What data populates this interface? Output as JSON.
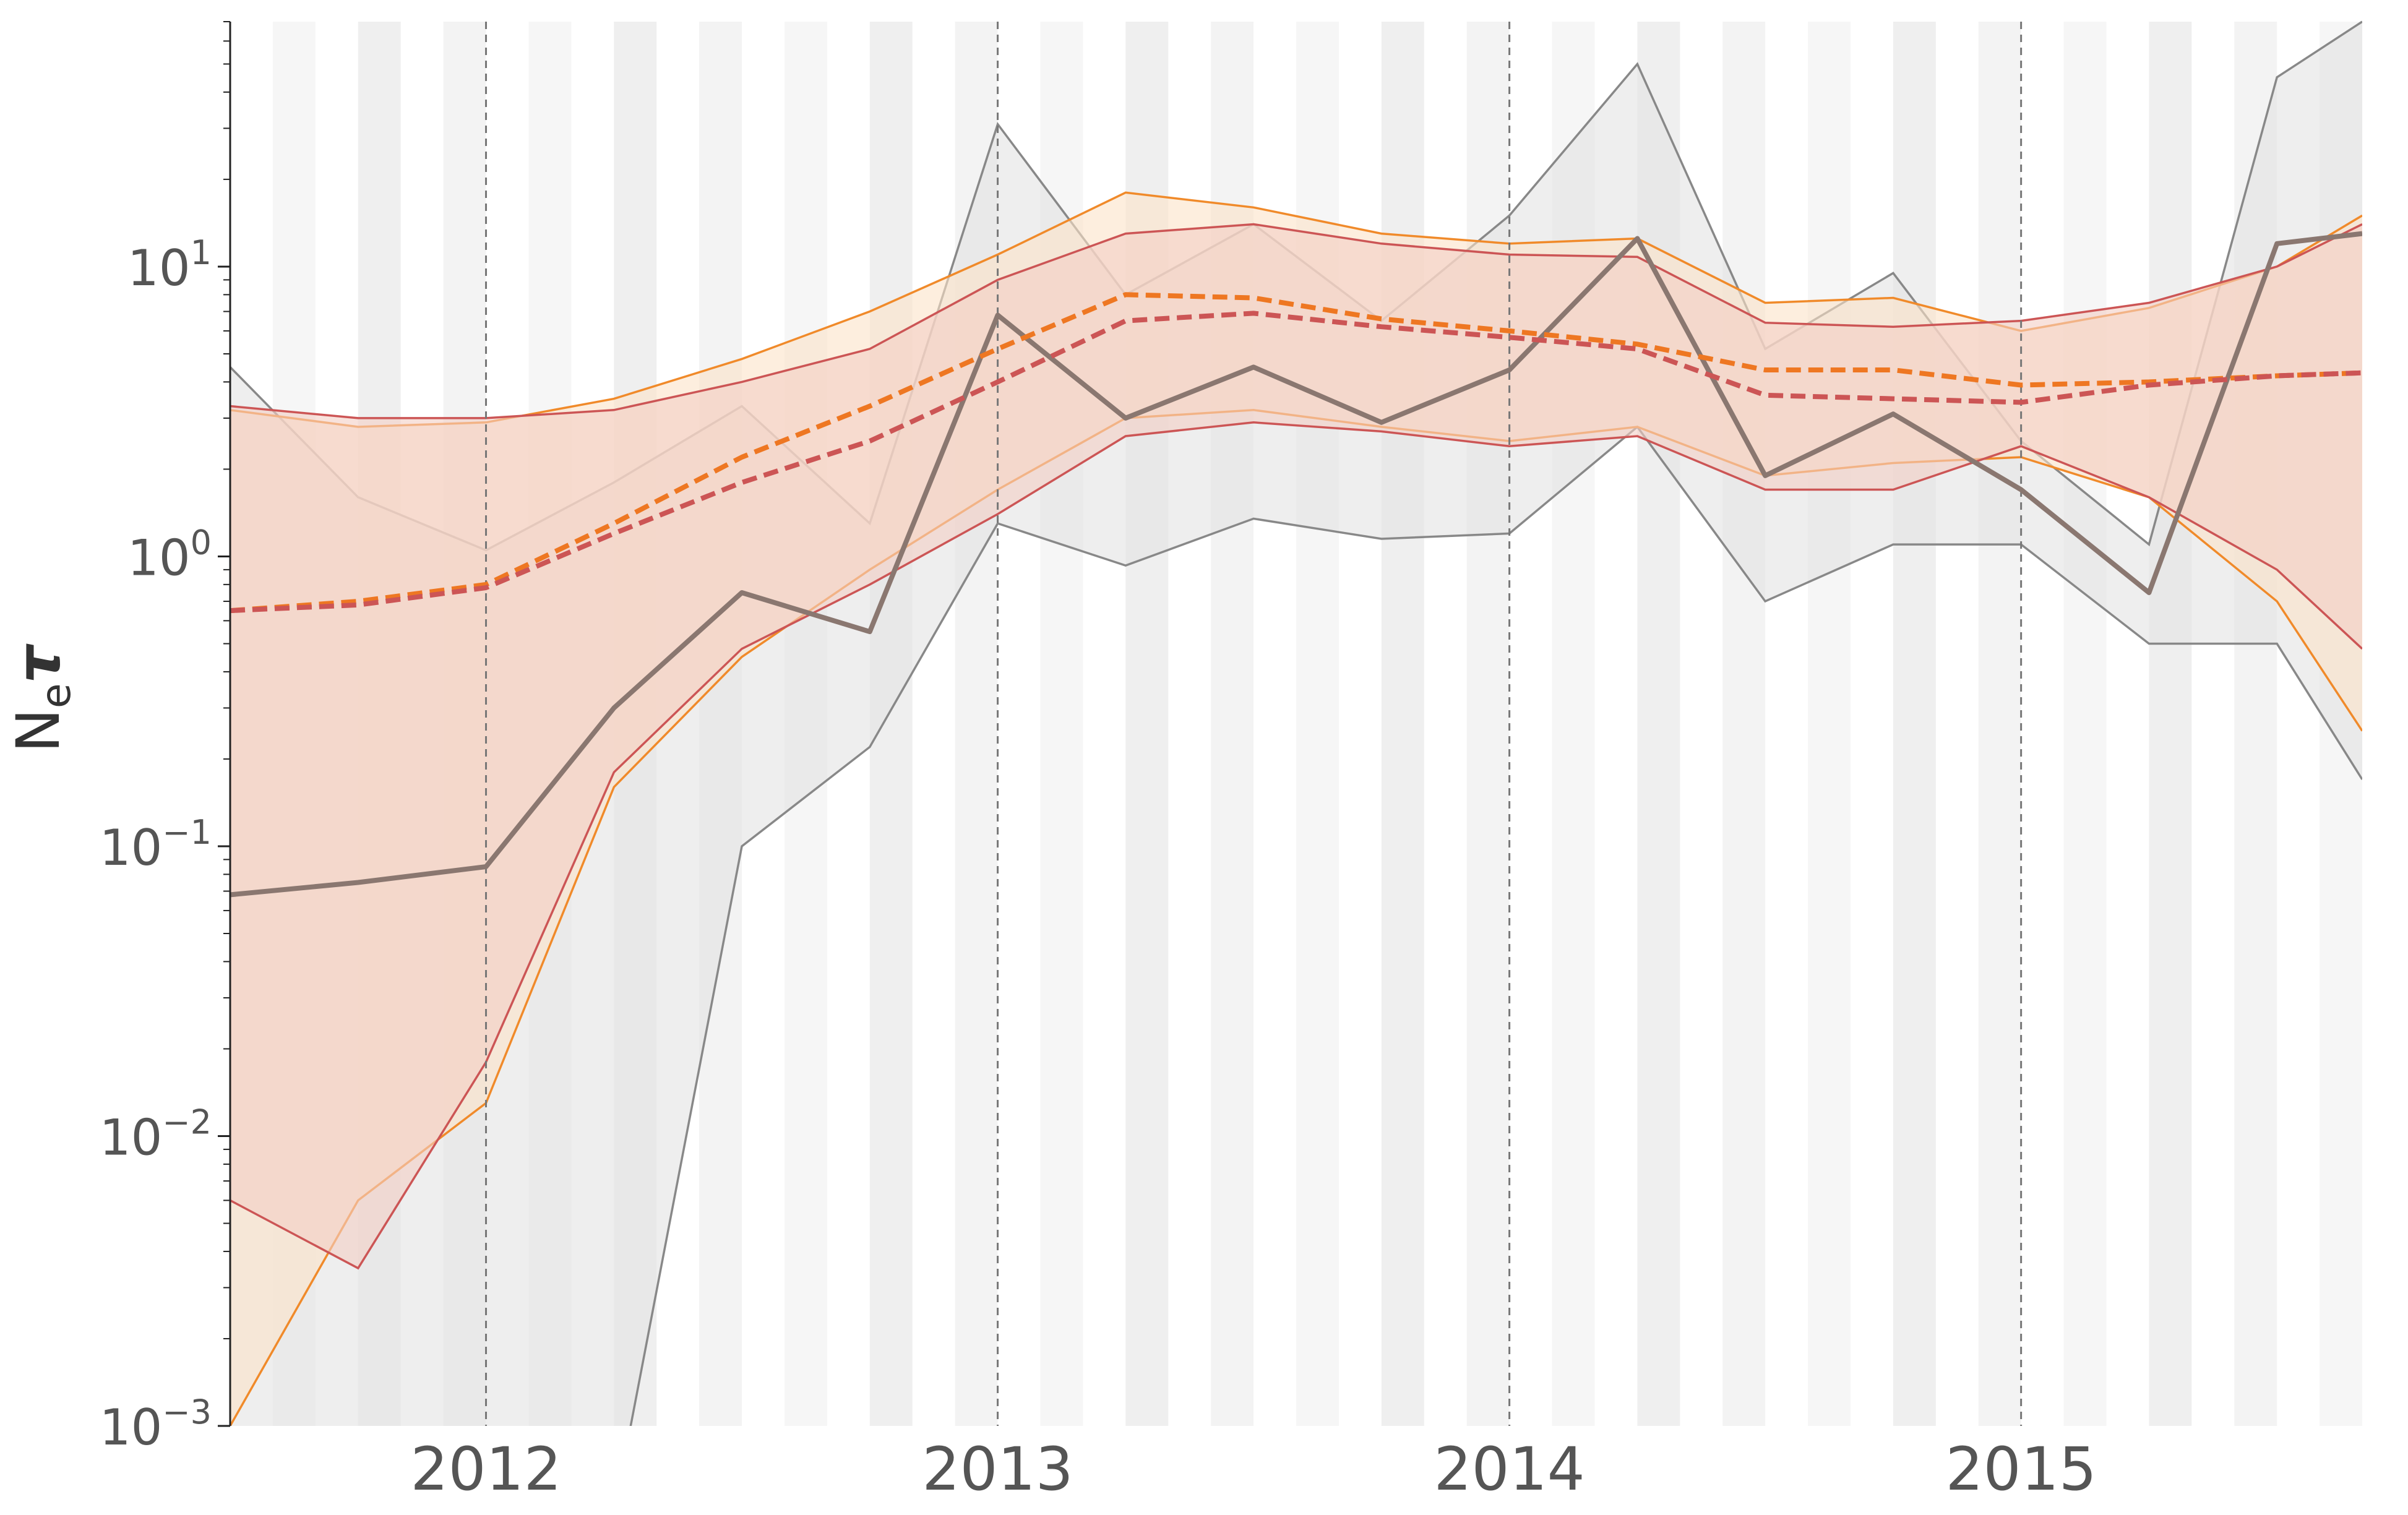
{
  "chart_data": {
    "type": "line",
    "title": "",
    "xlabel": "",
    "ylabel": "N",
    "ylabel_sub": "e",
    "ylabel_greek": "τ",
    "yscale": "log",
    "ylim": [
      0.001,
      70
    ],
    "xlim": [
      "2011-07",
      "2015-09"
    ],
    "grid": false,
    "legend": "none",
    "x_ticks": [
      {
        "value": "2012-01",
        "label": "2012"
      },
      {
        "value": "2013-01",
        "label": "2013"
      },
      {
        "value": "2014-01",
        "label": "2014"
      },
      {
        "value": "2015-01",
        "label": "2015"
      }
    ],
    "y_ticks": [
      {
        "value": 0.001,
        "base": "10",
        "exp": "−3"
      },
      {
        "value": 0.01,
        "base": "10",
        "exp": "−2"
      },
      {
        "value": 0.1,
        "base": "10",
        "exp": "−1"
      },
      {
        "value": 1,
        "base": "10",
        "exp": "0"
      },
      {
        "value": 10,
        "base": "10",
        "exp": "1"
      }
    ],
    "year_markers": [
      "2012-01",
      "2013-01",
      "2014-01",
      "2015-01"
    ],
    "x": [
      "2011-07",
      "2011-10",
      "2012-01",
      "2012-04",
      "2012-07",
      "2012-10",
      "2013-01",
      "2013-04",
      "2013-07",
      "2013-10",
      "2014-01",
      "2014-04",
      "2014-07",
      "2014-10",
      "2015-01",
      "2015-04",
      "2015-07",
      "2015-09"
    ],
    "series": [
      {
        "color": "#8a7770",
        "style": "solid",
        "values": [
          0.068,
          0.075,
          0.085,
          0.3,
          0.75,
          0.55,
          6.8,
          3.0,
          4.5,
          2.9,
          4.4,
          12.5,
          1.9,
          3.1,
          1.7,
          0.75,
          12.0,
          13.0
        ]
      },
      {
        "color": "#ee7722",
        "style": "dashed",
        "values": [
          0.65,
          0.7,
          0.8,
          1.3,
          2.2,
          3.3,
          5.2,
          8.0,
          7.8,
          6.6,
          6.0,
          5.4,
          4.4,
          4.4,
          3.9,
          4.0,
          4.2,
          4.3
        ]
      },
      {
        "color": "#cc5555",
        "style": "dashed",
        "values": [
          0.65,
          0.68,
          0.78,
          1.2,
          1.8,
          2.5,
          4.0,
          6.5,
          6.9,
          6.2,
          5.7,
          5.2,
          3.6,
          3.5,
          3.4,
          3.9,
          4.2,
          4.3
        ]
      }
    ],
    "bands": [
      {
        "color": "#888888",
        "fill": "#e2e2e2",
        "upper": [
          4.5,
          1.6,
          1.05,
          1.8,
          3.3,
          1.3,
          31.0,
          8.0,
          14.0,
          6.5,
          15.0,
          50.0,
          5.2,
          9.5,
          2.5,
          1.1,
          45.0,
          70.0
        ],
        "lower": [
          0.0005,
          0.0005,
          0.0005,
          0.0005,
          0.1,
          0.22,
          1.3,
          0.93,
          1.35,
          1.15,
          1.2,
          2.8,
          0.7,
          1.1,
          1.1,
          0.5,
          0.5,
          0.17
        ]
      },
      {
        "color": "#f08a2a",
        "fill": "#fbe2c8",
        "upper": [
          3.2,
          2.8,
          2.9,
          3.5,
          4.8,
          7.0,
          11.0,
          18.0,
          16.0,
          13.0,
          12.0,
          12.5,
          7.5,
          7.8,
          6.0,
          7.2,
          10.0,
          15.0
        ],
        "lower": [
          0.001,
          0.006,
          0.013,
          0.16,
          0.45,
          0.9,
          1.7,
          3.0,
          3.2,
          2.8,
          2.5,
          2.8,
          1.9,
          2.1,
          2.2,
          1.6,
          0.7,
          0.25
        ]
      },
      {
        "color": "#cc5555",
        "fill": "#f4cfc4",
        "upper": [
          3.3,
          3.0,
          3.0,
          3.2,
          4.0,
          5.2,
          9.0,
          13.0,
          14.0,
          12.0,
          11.0,
          10.8,
          6.4,
          6.2,
          6.5,
          7.5,
          10.0,
          14.0
        ],
        "lower": [
          0.006,
          0.0035,
          0.018,
          0.18,
          0.48,
          0.8,
          1.4,
          2.6,
          2.9,
          2.7,
          2.4,
          2.6,
          1.7,
          1.7,
          2.4,
          1.6,
          0.9,
          0.48
        ]
      }
    ]
  }
}
